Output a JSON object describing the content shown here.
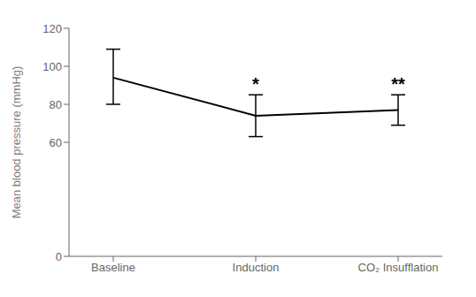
{
  "chart_data": {
    "type": "line",
    "categories": [
      "Baseline",
      "Induction",
      "CO₂ Insufflation"
    ],
    "values": [
      94,
      74,
      77
    ],
    "error_lower": [
      14,
      11,
      8
    ],
    "error_upper": [
      15,
      11,
      8
    ],
    "annotations": [
      {
        "category": "Induction",
        "text": "*"
      },
      {
        "category": "CO₂ Insufflation",
        "text": "**"
      }
    ],
    "ylabel": "Mean blood pressure (mmHg)",
    "ylim": [
      0,
      120
    ],
    "yticks": [
      0,
      60,
      80,
      100,
      120
    ],
    "color": "#000000",
    "grid": false
  }
}
